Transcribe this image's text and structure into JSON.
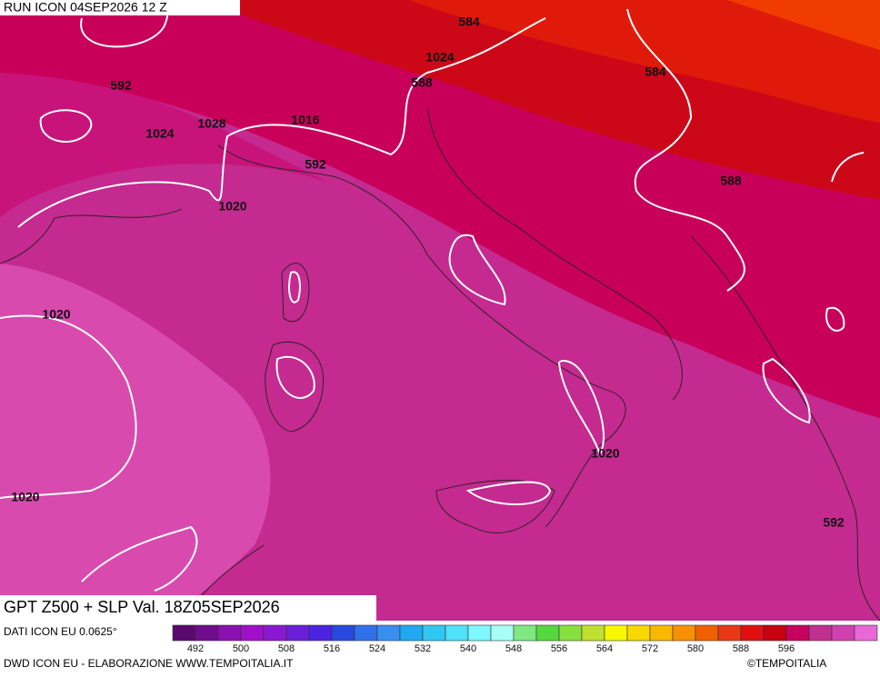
{
  "header": {
    "run": "RUN ICON 04SEP2026 12 Z"
  },
  "footer": {
    "title": "GPT Z500 + SLP Val. 18Z05SEP2026",
    "source": "DATI ICON EU 0.0625°",
    "credit": "DWD ICON EU - ELABORAZIONE WWW.TEMPOITALIA.IT",
    "copyright": "©TEMPOITALIA"
  },
  "contour_labels": [
    "584",
    "584",
    "592",
    "1024",
    "588",
    "1028",
    "1016",
    "1024",
    "592",
    "588",
    "1020",
    "1020",
    "1020",
    "1020",
    "592"
  ],
  "legend": {
    "ticks": [
      492,
      500,
      508,
      516,
      524,
      532,
      540,
      548,
      556,
      564,
      572,
      580,
      588,
      596
    ],
    "colors": [
      "#5a0a6e",
      "#6e0c8c",
      "#8a10b0",
      "#a010c8",
      "#8a18d0",
      "#6a1ed8",
      "#4a24e0",
      "#2848e0",
      "#3070e8",
      "#3a8ef0",
      "#20a8f0",
      "#30c8f0",
      "#50e0f8",
      "#80f8ff",
      "#a8fff8",
      "#80e880",
      "#58d840",
      "#88e040",
      "#c0e030",
      "#f8f800",
      "#f8d800",
      "#f8b800",
      "#f89000",
      "#f06000",
      "#e83818",
      "#e01010",
      "#c80010",
      "#c80060",
      "#c03090",
      "#d040b0",
      "#e868d8"
    ]
  }
}
